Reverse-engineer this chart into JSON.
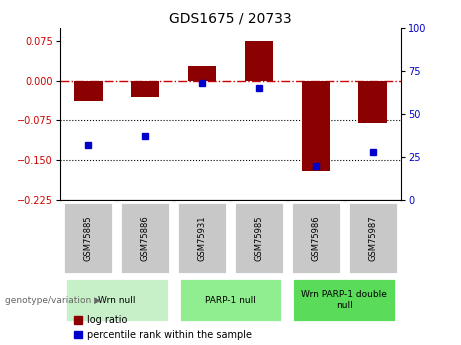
{
  "title": "GDS1675 / 20733",
  "samples": [
    "GSM75885",
    "GSM75886",
    "GSM75931",
    "GSM75985",
    "GSM75986",
    "GSM75987"
  ],
  "log_ratio": [
    -0.038,
    -0.03,
    0.028,
    0.075,
    -0.17,
    -0.08
  ],
  "percentile_rank": [
    32,
    37,
    68,
    65,
    20,
    28
  ],
  "groups": [
    {
      "label": "Wrn null",
      "samples": [
        0,
        1
      ],
      "color": "#c8f0c8"
    },
    {
      "label": "PARP-1 null",
      "samples": [
        2,
        3
      ],
      "color": "#90ee90"
    },
    {
      "label": "Wrn PARP-1 double\nnull",
      "samples": [
        4,
        5
      ],
      "color": "#5adb5a"
    }
  ],
  "bar_color": "#8b0000",
  "dot_color": "#0000cd",
  "ref_line_color": "#cc0000",
  "ylim_left": [
    -0.225,
    0.1
  ],
  "ylim_right": [
    0,
    100
  ],
  "yticks_left": [
    0.075,
    0,
    -0.075,
    -0.15,
    -0.225
  ],
  "yticks_right": [
    100,
    75,
    50,
    25,
    0
  ],
  "background_color": "#ffffff",
  "legend_items": [
    "log ratio",
    "percentile rank within the sample"
  ],
  "genotype_label": "genotype/variation",
  "sample_box_color": "#c8c8c8",
  "bar_width": 0.5
}
